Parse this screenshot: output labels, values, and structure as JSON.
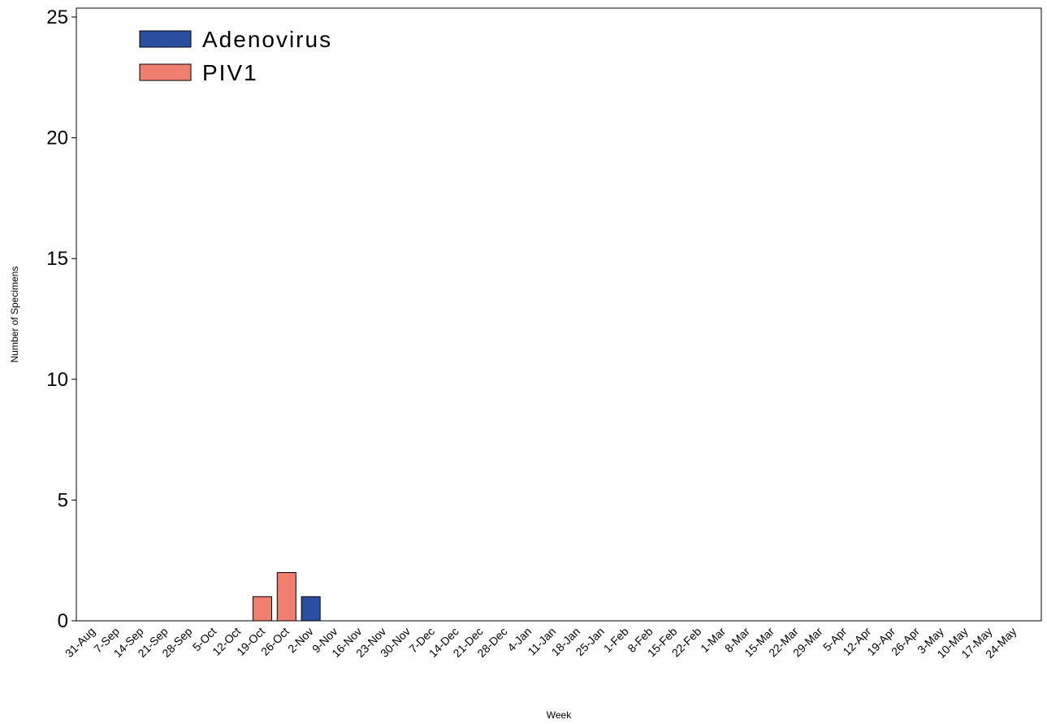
{
  "chart_data": {
    "type": "bar",
    "xlabel": "Week",
    "ylabel": "Number of Specimens",
    "ylim": [
      0,
      25
    ],
    "yticks": [
      0,
      5,
      10,
      15,
      20,
      25
    ],
    "grid": false,
    "legend_position": "top-left",
    "categories": [
      "31-Aug",
      "7-Sep",
      "14-Sep",
      "21-Sep",
      "28-Sep",
      "5-Oct",
      "12-Oct",
      "19-Oct",
      "26-Oct",
      "2-Nov",
      "9-Nov",
      "16-Nov",
      "23-Nov",
      "30-Nov",
      "7-Dec",
      "14-Dec",
      "21-Dec",
      "28-Dec",
      "4-Jan",
      "11-Jan",
      "18-Jan",
      "25-Jan",
      "1-Feb",
      "8-Feb",
      "15-Feb",
      "22-Feb",
      "1-Mar",
      "8-Mar",
      "15-Mar",
      "22-Mar",
      "29-Mar",
      "5-Apr",
      "12-Apr",
      "19-Apr",
      "26-Apr",
      "3-May",
      "10-May",
      "17-May",
      "24-May"
    ],
    "series": [
      {
        "name": "Adenovirus",
        "color": "#2a4fa0",
        "values": [
          0,
          0,
          0,
          0,
          0,
          0,
          0,
          0,
          0,
          1,
          0,
          0,
          0,
          0,
          0,
          0,
          0,
          0,
          0,
          0,
          0,
          0,
          0,
          0,
          0,
          0,
          0,
          0,
          0,
          0,
          0,
          0,
          0,
          0,
          0,
          0,
          0,
          0,
          0
        ]
      },
      {
        "name": "PIV1",
        "color": "#f07f70",
        "values": [
          0,
          0,
          0,
          0,
          0,
          0,
          0,
          1,
          2,
          0,
          0,
          0,
          0,
          0,
          0,
          0,
          0,
          0,
          0,
          0,
          0,
          0,
          0,
          0,
          0,
          0,
          0,
          0,
          0,
          0,
          0,
          0,
          0,
          0,
          0,
          0,
          0,
          0,
          0
        ]
      }
    ]
  }
}
